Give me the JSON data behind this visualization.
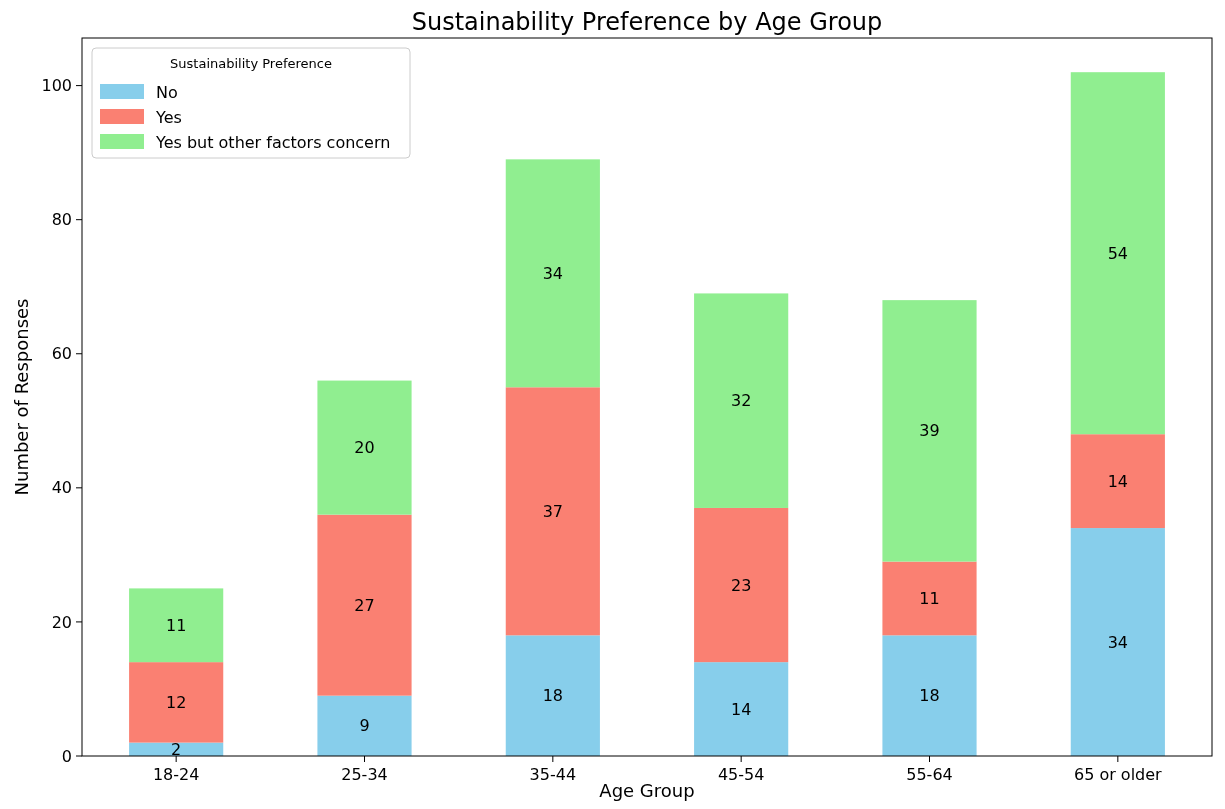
{
  "chart_data": {
    "type": "bar",
    "title": "Sustainability Preference by Age Group",
    "xlabel": "Age Group",
    "ylabel": "Number of Responses",
    "legend_title": "Sustainability Preference",
    "categories": [
      "18-24",
      "25-34",
      "35-44",
      "45-54",
      "55-64",
      "65 or older"
    ],
    "series": [
      {
        "name": "No",
        "color": "#87ceeb",
        "values": [
          2,
          9,
          18,
          14,
          18,
          34
        ]
      },
      {
        "name": "Yes",
        "color": "#fa8072",
        "values": [
          12,
          27,
          37,
          23,
          11,
          14
        ]
      },
      {
        "name": "Yes but other factors concern",
        "color": "#90ee90",
        "values": [
          11,
          20,
          34,
          32,
          39,
          54
        ]
      }
    ],
    "stacked": true,
    "data_labels": true,
    "legend": "top left",
    "grid": false,
    "ylim": [
      0,
      107.1
    ],
    "yticks": [
      0,
      20,
      40,
      60,
      80,
      100
    ]
  }
}
